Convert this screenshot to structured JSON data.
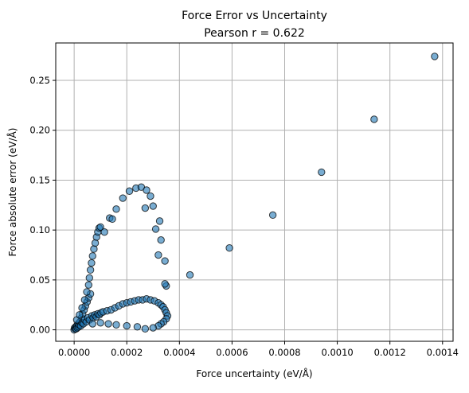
{
  "chart_data": {
    "type": "scatter",
    "title": "Force Error vs Uncertainty",
    "subtitle": "Pearson r = 0.622",
    "xlabel": "Force uncertainty (eV/Å)",
    "ylabel": "Force absolute error (eV/Å)",
    "xlim": [
      -7e-05,
      0.00144
    ],
    "ylim": [
      -0.0115,
      0.2875
    ],
    "xticks": [
      0.0,
      0.0002,
      0.0004,
      0.0006,
      0.0008,
      0.001,
      0.0012,
      0.0014
    ],
    "xtick_labels": [
      "0.0000",
      "0.0002",
      "0.0004",
      "0.0006",
      "0.0008",
      "0.0010",
      "0.0012",
      "0.0014"
    ],
    "yticks": [
      0.0,
      0.05,
      0.1,
      0.15,
      0.2,
      0.25
    ],
    "ytick_labels": [
      "0.00",
      "0.05",
      "0.10",
      "0.15",
      "0.20",
      "0.25"
    ],
    "grid": true,
    "marker_color": "#1f77b4",
    "marker_edge_color": "#000000",
    "marker_alpha": 0.6,
    "points": [
      [
        0.0,
        0.0
      ],
      [
        2e-06,
        0.002
      ],
      [
        4e-06,
        0.001
      ],
      [
        6e-06,
        0.003
      ],
      [
        8e-06,
        0.001
      ],
      [
        1e-05,
        0.004
      ],
      [
        1.2e-05,
        0.002
      ],
      [
        1.5e-05,
        0.006
      ],
      [
        1.7e-05,
        0.003
      ],
      [
        1.9e-05,
        0.005
      ],
      [
        2.2e-05,
        0.008
      ],
      [
        2.5e-05,
        0.004
      ],
      [
        2.8e-05,
        0.012
      ],
      [
        3e-05,
        0.007
      ],
      [
        3.2e-05,
        0.016
      ],
      [
        3.5e-05,
        0.006
      ],
      [
        3.8e-05,
        0.02
      ],
      [
        4e-05,
        0.01
      ],
      [
        4.3e-05,
        0.024
      ],
      [
        4.6e-05,
        0.008
      ],
      [
        4.9e-05,
        0.028
      ],
      [
        5.2e-05,
        0.012
      ],
      [
        5.5e-05,
        0.032
      ],
      [
        5.8e-05,
        0.01
      ],
      [
        6.2e-05,
        0.036
      ],
      [
        6.7e-05,
        0.014
      ],
      [
        7.2e-05,
        0.012
      ],
      [
        7.8e-05,
        0.015
      ],
      [
        8.4e-05,
        0.013
      ],
      [
        9e-05,
        0.016
      ],
      [
        9.6e-05,
        0.015
      ],
      [
        0.000102,
        0.017
      ],
      [
        1e-05,
        0.01
      ],
      [
        2e-05,
        0.015
      ],
      [
        3e-05,
        0.022
      ],
      [
        4e-05,
        0.03
      ],
      [
        4.8e-05,
        0.038
      ],
      [
        5.5e-05,
        0.045
      ],
      [
        5.8e-05,
        0.052
      ],
      [
        6.2e-05,
        0.06
      ],
      [
        6.6e-05,
        0.067
      ],
      [
        7e-05,
        0.074
      ],
      [
        7.5e-05,
        0.081
      ],
      [
        8e-05,
        0.087
      ],
      [
        8.5e-05,
        0.093
      ],
      [
        9e-05,
        0.098
      ],
      [
        9.5e-05,
        0.102
      ],
      [
        0.0001,
        0.103
      ],
      [
        0.000115,
        0.098
      ],
      [
        0.000135,
        0.112
      ],
      [
        0.000145,
        0.111
      ],
      [
        0.00016,
        0.121
      ],
      [
        0.000185,
        0.132
      ],
      [
        0.00021,
        0.139
      ],
      [
        0.000235,
        0.142
      ],
      [
        0.000255,
        0.143
      ],
      [
        0.000275,
        0.14
      ],
      [
        0.00029,
        0.134
      ],
      [
        0.0003,
        0.124
      ],
      [
        0.00031,
        0.101
      ],
      [
        0.000325,
        0.109
      ],
      [
        0.00033,
        0.09
      ],
      [
        0.000345,
        0.069
      ],
      [
        0.00035,
        0.044
      ],
      [
        0.00027,
        0.122
      ],
      [
        0.00032,
        0.075
      ],
      [
        0.000345,
        0.046
      ],
      [
        0.00011,
        0.018
      ],
      [
        0.000125,
        0.019
      ],
      [
        0.00014,
        0.02
      ],
      [
        0.000155,
        0.022
      ],
      [
        0.00017,
        0.024
      ],
      [
        0.000185,
        0.026
      ],
      [
        0.0002,
        0.027
      ],
      [
        0.000215,
        0.028
      ],
      [
        0.00023,
        0.029
      ],
      [
        0.000245,
        0.03
      ],
      [
        0.00026,
        0.03
      ],
      [
        0.000275,
        0.031
      ],
      [
        0.00029,
        0.03
      ],
      [
        0.000305,
        0.029
      ],
      [
        0.00032,
        0.027
      ],
      [
        0.00033,
        0.025
      ],
      [
        0.000338,
        0.023
      ],
      [
        0.000345,
        0.02
      ],
      [
        0.00035,
        0.017
      ],
      [
        0.000355,
        0.014
      ],
      [
        0.00035,
        0.011
      ],
      [
        0.00034,
        0.008
      ],
      [
        0.00033,
        0.006
      ],
      [
        0.00032,
        0.004
      ],
      [
        0.0003,
        0.002
      ],
      [
        0.00027,
        0.001
      ],
      [
        0.00024,
        0.003
      ],
      [
        0.0002,
        0.004
      ],
      [
        0.00016,
        0.005
      ],
      [
        0.00013,
        0.006
      ],
      [
        0.0001,
        0.007
      ],
      [
        7e-05,
        0.006
      ],
      [
        0.00044,
        0.055
      ],
      [
        0.00059,
        0.082
      ],
      [
        0.000755,
        0.115
      ],
      [
        0.00094,
        0.158
      ],
      [
        0.00114,
        0.211
      ],
      [
        0.00137,
        0.274
      ]
    ]
  }
}
